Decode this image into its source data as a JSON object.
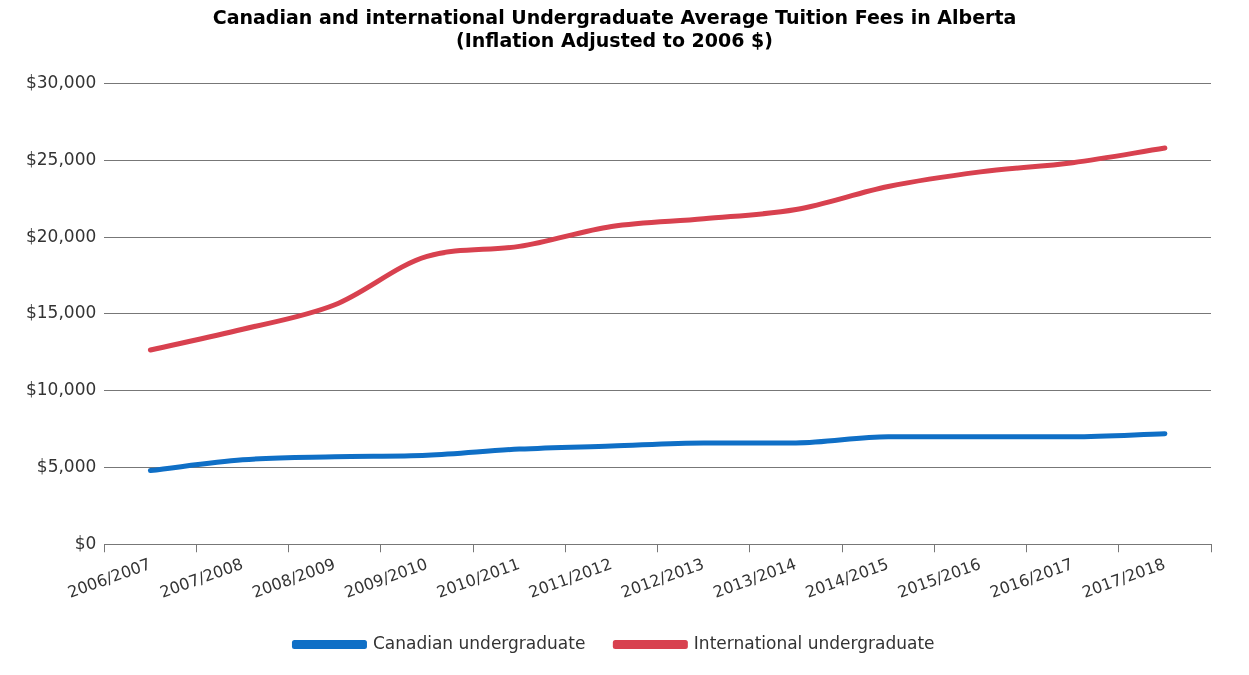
{
  "chart_data": {
    "type": "line",
    "title": [
      "Canadian and international Undergraduate Average Tuition Fees in Alberta",
      "(Inflation Adjusted to 2006 $)"
    ],
    "categories": [
      "2006/2007",
      "2007/2008",
      "2008/2009",
      "2009/2010",
      "2010/2011",
      "2011/2012",
      "2012/2013",
      "2013/2014",
      "2014/2015",
      "2015/2016",
      "2016/2017",
      "2017/2018"
    ],
    "series": [
      {
        "name": "Canadian undergraduate",
        "color": "#0f6fc6",
        "values": [
          4800,
          5500,
          5700,
          5800,
          6200,
          6400,
          6600,
          6600,
          7000,
          7000,
          7000,
          7200
        ]
      },
      {
        "name": "International undergraduate",
        "color": "#d8414f",
        "values": [
          12650,
          14000,
          15600,
          18750,
          19400,
          20700,
          21200,
          21800,
          23300,
          24250,
          24850,
          25800
        ]
      }
    ],
    "ylim": [
      0,
      30000
    ],
    "yticks": [
      {
        "value": 0,
        "label": "$0"
      },
      {
        "value": 5000,
        "label": "$5,000"
      },
      {
        "value": 10000,
        "label": "$10,000"
      },
      {
        "value": 15000,
        "label": "$15,000"
      },
      {
        "value": 20000,
        "label": "$20,000"
      },
      {
        "value": 25000,
        "label": "$25,000"
      },
      {
        "value": 30000,
        "label": "$30,000"
      }
    ],
    "grid": "y",
    "legend": "bottom",
    "marker": "none",
    "line_style": "solid"
  }
}
